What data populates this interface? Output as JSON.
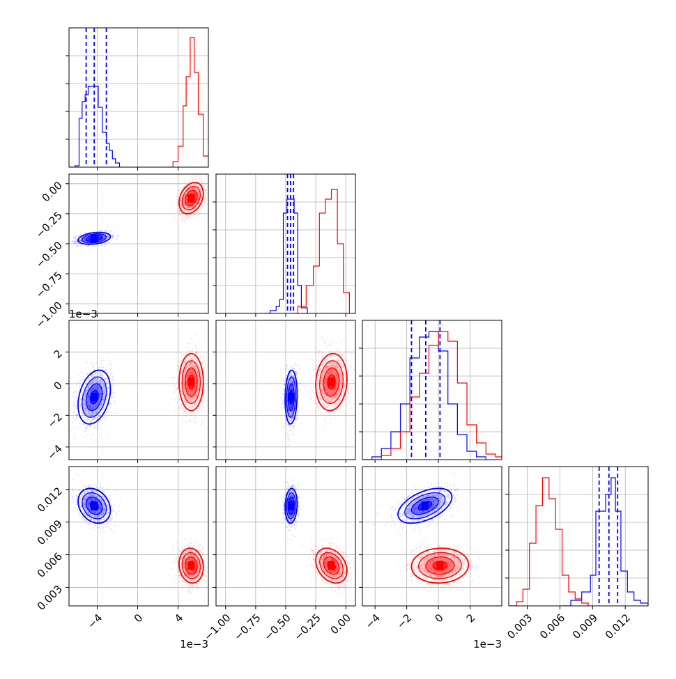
{
  "chart_data": {
    "type": "corner",
    "colors": {
      "blue": "#0000ff",
      "red": "#ff0000"
    },
    "parameters": [
      {
        "range": [
          -0.0068,
          0.007
        ],
        "ticks": [
          -4,
          0,
          4
        ],
        "tick_labels": [
          "−4",
          "0",
          "4"
        ],
        "tick_scale": 0.001,
        "offset_label": "1e−3"
      },
      {
        "range": [
          -1.08,
          0.08
        ],
        "ticks": [
          -1.0,
          -0.75,
          -0.5,
          -0.25,
          0.0
        ],
        "tick_labels": [
          "−1.00",
          "−0.75",
          "−0.50",
          "−0.25",
          "0.00"
        ],
        "tick_scale": 1,
        "offset_label": ""
      },
      {
        "range": [
          -0.0048,
          0.004
        ],
        "ticks": [
          -4,
          -2,
          0,
          2
        ],
        "tick_labels": [
          "−4",
          "−2",
          "0",
          "2"
        ],
        "tick_scale": 0.001,
        "offset_label": "1e−3"
      },
      {
        "range": [
          0.0013,
          0.0141
        ],
        "ticks": [
          0.003,
          0.006,
          0.009,
          0.012
        ],
        "tick_labels": [
          "0.003",
          "0.006",
          "0.009",
          "0.012"
        ],
        "tick_scale": 1,
        "offset_label": ""
      }
    ],
    "series": [
      {
        "color": "blue",
        "means": [
          -0.0043,
          -0.455,
          -0.00085,
          0.0105
        ],
        "stds": [
          0.0008,
          0.025,
          0.00085,
          0.0008
        ],
        "corr": [
          [
            0,
            1,
            0.3
          ],
          [
            0,
            2,
            0.3
          ],
          [
            0,
            3,
            -0.25
          ],
          [
            1,
            2,
            0.1
          ],
          [
            1,
            3,
            0.1
          ],
          [
            2,
            3,
            0.5
          ]
        ],
        "quantiles": [
          [
            -0.0051,
            -0.0043,
            -0.0031
          ],
          [
            -0.485,
            -0.46,
            -0.435
          ],
          [
            -0.0017,
            -0.0008,
            0.0001
          ],
          [
            0.0096,
            0.0105,
            0.0113
          ]
        ]
      },
      {
        "color": "red",
        "means": [
          0.0053,
          -0.12,
          0.0001,
          0.005
        ],
        "stds": [
          0.0006,
          0.065,
          0.0009,
          0.0008
        ],
        "corr": [
          [
            0,
            1,
            0.3
          ],
          [
            0,
            2,
            0.0
          ],
          [
            0,
            3,
            -0.1
          ],
          [
            1,
            2,
            0.1
          ],
          [
            1,
            3,
            -0.3
          ],
          [
            2,
            3,
            0.05
          ]
        ],
        "quantiles": []
      }
    ],
    "histograms": [
      {
        "param": 0,
        "blue": [
          [
            -0.0068,
            0.0
          ],
          [
            -0.0062,
            0.01
          ],
          [
            -0.0058,
            0.35
          ],
          [
            -0.0055,
            0.47
          ],
          [
            -0.0052,
            0.52
          ],
          [
            -0.0049,
            0.58
          ],
          [
            -0.0046,
            0.58
          ],
          [
            -0.0042,
            0.58
          ],
          [
            -0.0039,
            0.43
          ],
          [
            -0.0035,
            0.25
          ],
          [
            -0.0031,
            0.17
          ],
          [
            -0.0028,
            0.12
          ],
          [
            -0.0025,
            0.06
          ],
          [
            -0.0022,
            0.03
          ],
          [
            -0.0018,
            0.0
          ]
        ],
        "red": [
          [
            0.003,
            0.0
          ],
          [
            0.0035,
            0.04
          ],
          [
            0.004,
            0.15
          ],
          [
            0.0045,
            0.44
          ],
          [
            0.0048,
            0.65
          ],
          [
            0.0052,
            0.93
          ],
          [
            0.0056,
            0.68
          ],
          [
            0.006,
            0.38
          ],
          [
            0.0065,
            0.08
          ],
          [
            0.007,
            0.0
          ]
        ],
        "quantiles": [
          -0.0051,
          -0.0043,
          -0.0031
        ]
      },
      {
        "param": 1,
        "blue": [
          [
            -0.68,
            0.0
          ],
          [
            -0.63,
            0.02
          ],
          [
            -0.58,
            0.05
          ],
          [
            -0.55,
            0.1
          ],
          [
            -0.52,
            0.72
          ],
          [
            -0.49,
            0.82
          ],
          [
            -0.46,
            0.82
          ],
          [
            -0.43,
            0.72
          ],
          [
            -0.4,
            0.2
          ],
          [
            -0.37,
            0.04
          ],
          [
            -0.32,
            0.0
          ]
        ],
        "red": [
          [
            -0.45,
            0.0
          ],
          [
            -0.4,
            0.05
          ],
          [
            -0.33,
            0.2
          ],
          [
            -0.27,
            0.34
          ],
          [
            -0.22,
            0.72
          ],
          [
            -0.17,
            0.82
          ],
          [
            -0.12,
            0.89
          ],
          [
            -0.07,
            0.5
          ],
          [
            -0.02,
            0.15
          ],
          [
            0.03,
            0.0
          ]
        ],
        "quantiles": [
          -0.485,
          -0.46,
          -0.435
        ]
      },
      {
        "param": 2,
        "blue": [
          [
            -0.0048,
            0.0
          ],
          [
            -0.0042,
            0.02
          ],
          [
            -0.0036,
            0.08
          ],
          [
            -0.003,
            0.2
          ],
          [
            -0.0024,
            0.4
          ],
          [
            -0.0018,
            0.73
          ],
          [
            -0.0012,
            0.88
          ],
          [
            -0.0006,
            0.92
          ],
          [
            0.0,
            0.78
          ],
          [
            0.0006,
            0.4
          ],
          [
            0.0012,
            0.18
          ],
          [
            0.0018,
            0.06
          ],
          [
            0.0024,
            0.02
          ],
          [
            0.003,
            0.0
          ]
        ],
        "red": [
          [
            -0.0042,
            0.0
          ],
          [
            -0.0036,
            0.03
          ],
          [
            -0.003,
            0.08
          ],
          [
            -0.0024,
            0.2
          ],
          [
            -0.0018,
            0.45
          ],
          [
            -0.0012,
            0.62
          ],
          [
            -0.0006,
            0.82
          ],
          [
            0.0,
            0.92
          ],
          [
            0.0006,
            0.85
          ],
          [
            0.0012,
            0.55
          ],
          [
            0.0018,
            0.25
          ],
          [
            0.0024,
            0.12
          ],
          [
            0.003,
            0.04
          ],
          [
            0.0036,
            0.02
          ],
          [
            0.0042,
            0.0
          ]
        ],
        "quantiles": [
          -0.0017,
          -0.0008,
          0.0001
        ]
      },
      {
        "param": 3,
        "blue": [
          [
            0.0062,
            0.0
          ],
          [
            0.007,
            0.04
          ],
          [
            0.008,
            0.1
          ],
          [
            0.0088,
            0.22
          ],
          [
            0.0093,
            0.68
          ],
          [
            0.0098,
            0.68
          ],
          [
            0.0102,
            0.8
          ],
          [
            0.0107,
            0.92
          ],
          [
            0.0111,
            0.68
          ],
          [
            0.0116,
            0.25
          ],
          [
            0.0122,
            0.1
          ],
          [
            0.0128,
            0.04
          ],
          [
            0.0134,
            0.02
          ],
          [
            0.0141,
            0.0
          ]
        ],
        "red": [
          [
            0.0013,
            0.0
          ],
          [
            0.002,
            0.03
          ],
          [
            0.0026,
            0.12
          ],
          [
            0.0032,
            0.45
          ],
          [
            0.0038,
            0.72
          ],
          [
            0.0044,
            0.92
          ],
          [
            0.005,
            0.77
          ],
          [
            0.0056,
            0.55
          ],
          [
            0.0062,
            0.22
          ],
          [
            0.0068,
            0.1
          ],
          [
            0.0074,
            0.05
          ],
          [
            0.008,
            0.02
          ],
          [
            0.0086,
            0.0
          ]
        ],
        "quantiles": [
          0.0096,
          0.0105,
          0.0113
        ]
      }
    ]
  }
}
